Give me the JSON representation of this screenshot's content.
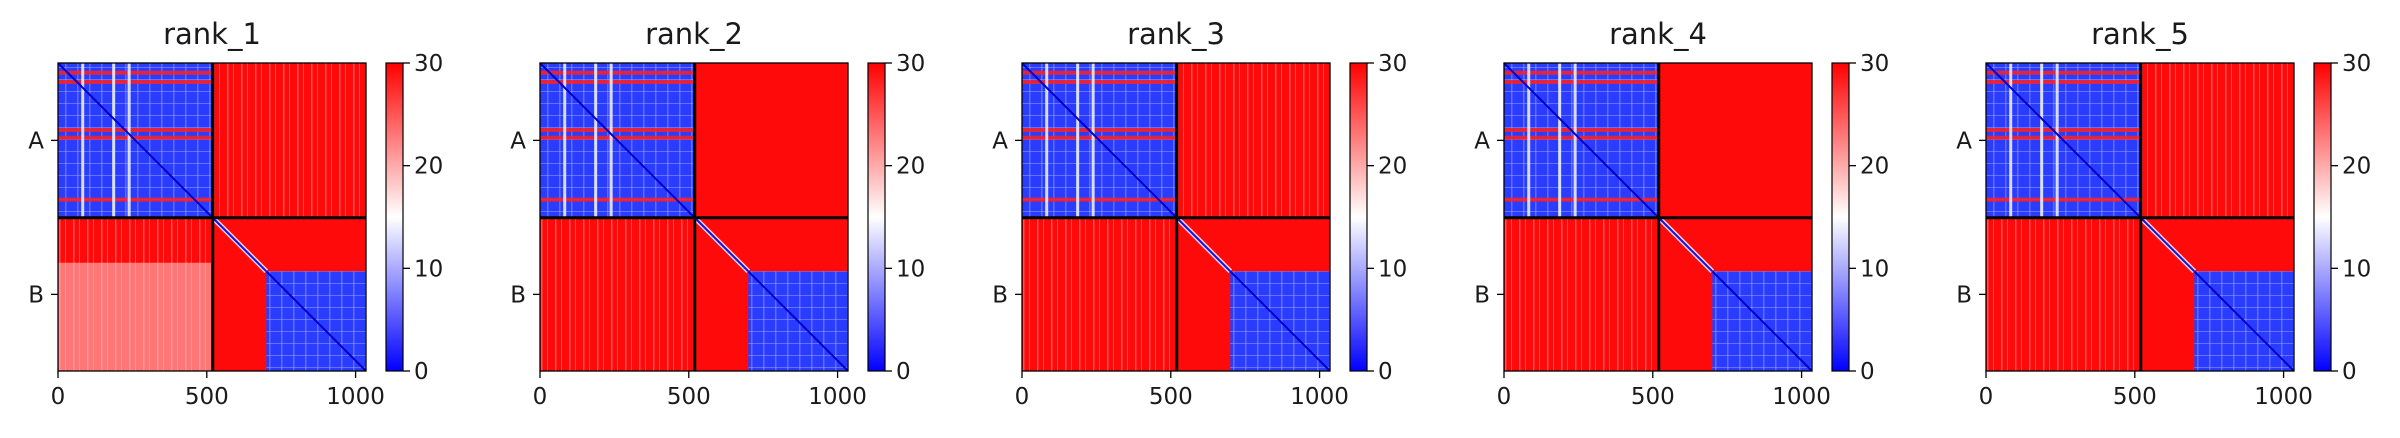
{
  "chart_data": [
    {
      "type": "heatmap",
      "title": "rank_1",
      "xticks": [
        0,
        500,
        1000
      ],
      "xlim": [
        0,
        1035
      ],
      "ylim": [
        1035,
        0
      ],
      "yticklabels": [
        "A",
        "B"
      ],
      "chains": [
        {
          "name": "A",
          "start": 0,
          "end": 520
        },
        {
          "name": "B",
          "start": 520,
          "end": 1035
        }
      ],
      "color_range": [
        0,
        30
      ],
      "colorbar_ticks": [
        0,
        10,
        20,
        30
      ],
      "colormap": [
        "#0000ff",
        "#ffffff",
        "#ff0000"
      ]
    },
    {
      "type": "heatmap",
      "title": "rank_2",
      "xticks": [
        0,
        500,
        1000
      ],
      "xlim": [
        0,
        1035
      ],
      "ylim": [
        1035,
        0
      ],
      "yticklabels": [
        "A",
        "B"
      ],
      "chains": [
        {
          "name": "A",
          "start": 0,
          "end": 520
        },
        {
          "name": "B",
          "start": 520,
          "end": 1035
        }
      ],
      "color_range": [
        0,
        30
      ],
      "colorbar_ticks": [
        0,
        10,
        20,
        30
      ],
      "colormap": [
        "#0000ff",
        "#ffffff",
        "#ff0000"
      ]
    },
    {
      "type": "heatmap",
      "title": "rank_3",
      "xticks": [
        0,
        500,
        1000
      ],
      "xlim": [
        0,
        1035
      ],
      "ylim": [
        1035,
        0
      ],
      "yticklabels": [
        "A",
        "B"
      ],
      "chains": [
        {
          "name": "A",
          "start": 0,
          "end": 520
        },
        {
          "name": "B",
          "start": 520,
          "end": 1035
        }
      ],
      "color_range": [
        0,
        30
      ],
      "colorbar_ticks": [
        0,
        10,
        20,
        30
      ],
      "colormap": [
        "#0000ff",
        "#ffffff",
        "#ff0000"
      ]
    },
    {
      "type": "heatmap",
      "title": "rank_4",
      "xticks": [
        0,
        500,
        1000
      ],
      "xlim": [
        0,
        1035
      ],
      "ylim": [
        1035,
        0
      ],
      "yticklabels": [
        "A",
        "B"
      ],
      "chains": [
        {
          "name": "A",
          "start": 0,
          "end": 520
        },
        {
          "name": "B",
          "start": 520,
          "end": 1035
        }
      ],
      "color_range": [
        0,
        30
      ],
      "colorbar_ticks": [
        0,
        10,
        20,
        30
      ],
      "colormap": [
        "#0000ff",
        "#ffffff",
        "#ff0000"
      ]
    },
    {
      "type": "heatmap",
      "title": "rank_5",
      "xticks": [
        0,
        500,
        1000
      ],
      "xlim": [
        0,
        1035
      ],
      "ylim": [
        1035,
        0
      ],
      "yticklabels": [
        "A",
        "B"
      ],
      "chains": [
        {
          "name": "A",
          "start": 0,
          "end": 520
        },
        {
          "name": "B",
          "start": 520,
          "end": 1035
        }
      ],
      "color_range": [
        0,
        30
      ],
      "colorbar_ticks": [
        0,
        10,
        20,
        30
      ],
      "colormap": [
        "#0000ff",
        "#ffffff",
        "#ff0000"
      ]
    }
  ]
}
